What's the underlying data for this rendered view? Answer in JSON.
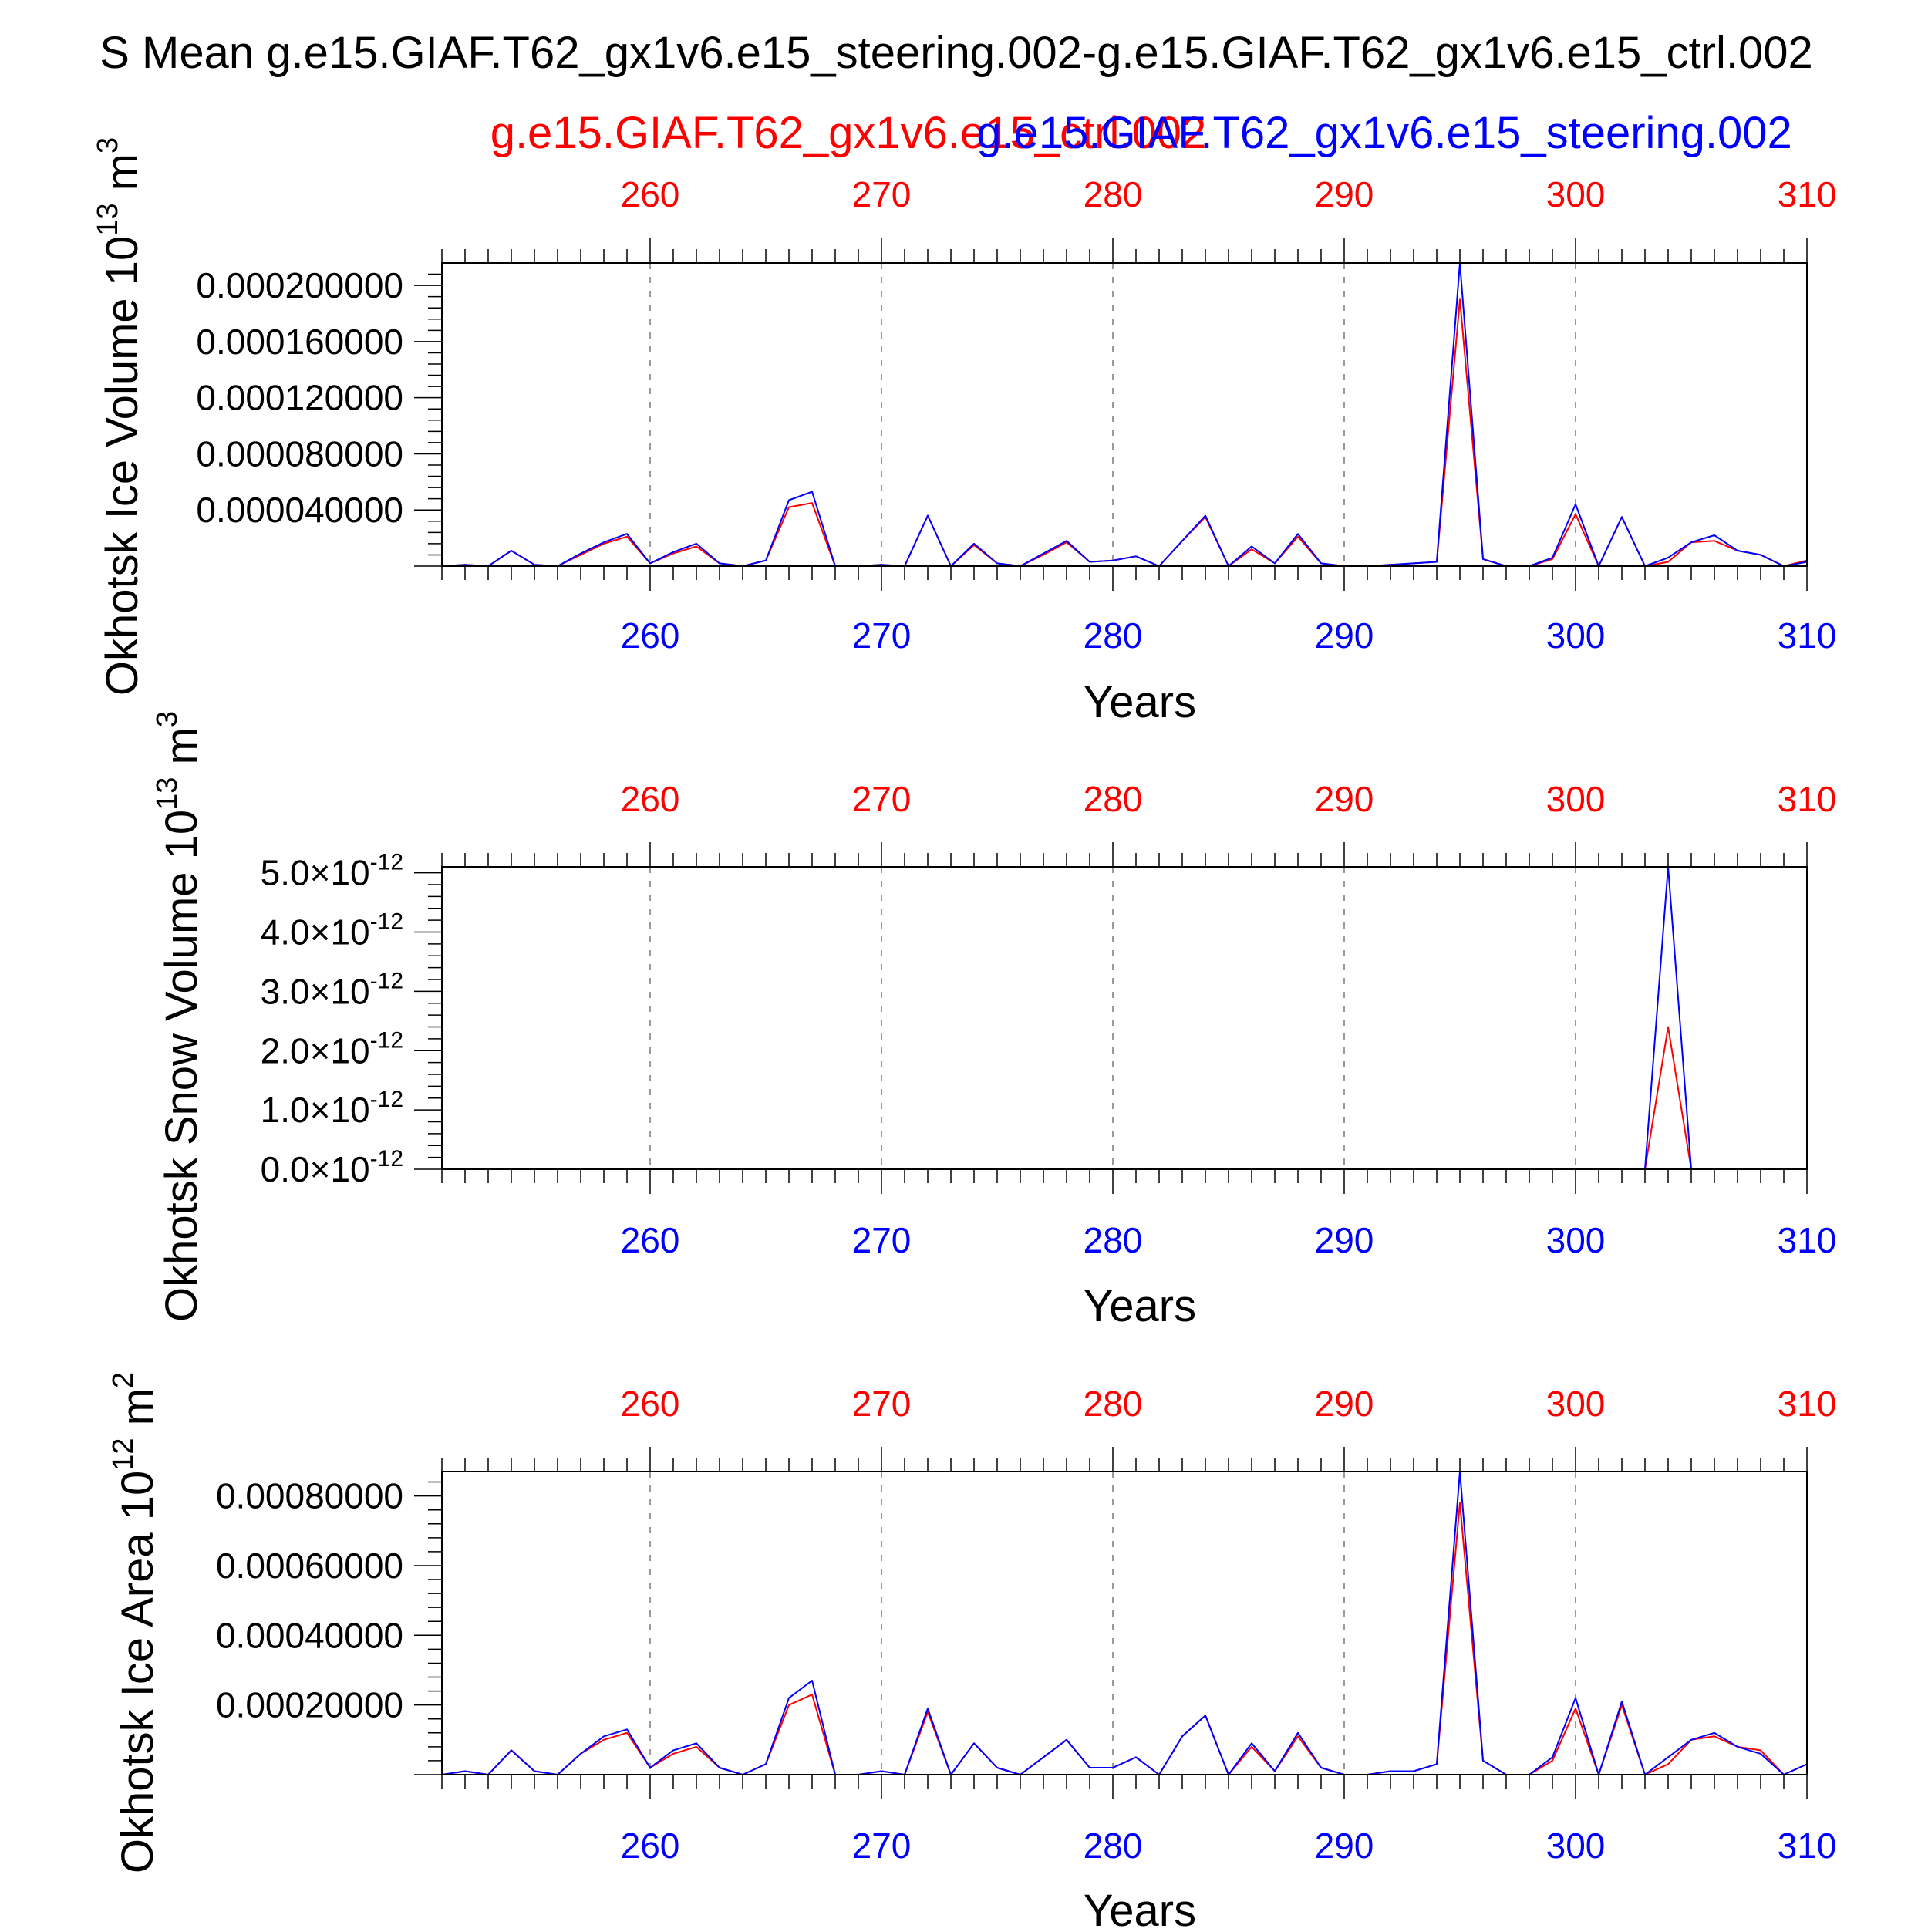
{
  "page": {
    "title": "S Mean g.e15.GIAF.T62_gx1v6.e15_steering.002-g.e15.GIAF.T62_gx1v6.e15_ctrl.002",
    "legend_ctrl": "g.e15.GIAF.T62_gx1v6.e15_ctrl.002",
    "legend_steering": "g.e15.GIAF.T62_gx1v6.e15_steering.002",
    "colors": {
      "ctrl": "#ff0000",
      "steering": "#0000ff",
      "axis": "#000000",
      "grid": "#9a9a9a"
    }
  },
  "chart_data": [
    {
      "type": "line",
      "title": "Okhotsk Ice Volume",
      "ylabel": "Okhotsk Ice Volume 10^13 m^3",
      "ylabel_main": "Okhotsk Ice Volume 10",
      "ylabel_exp": "13",
      "ylabel_unit": " m",
      "ylabel_unit_exp": "3",
      "xlabel": "Years",
      "xlim": [
        251,
        310
      ],
      "ylim": [
        0,
        0.000216
      ],
      "yticks": [
        4e-05,
        8e-05,
        0.00012,
        0.00016,
        0.0002
      ],
      "ytick_labels": [
        "0.000040000",
        "0.000080000",
        "0.000120000",
        "0.000160000",
        "0.000200000"
      ],
      "xticks": [
        260,
        270,
        280,
        290,
        300,
        310
      ],
      "xtick_labels": [
        "260",
        "270",
        "280",
        "290",
        "300",
        "310"
      ],
      "x": [
        251,
        252,
        253,
        254,
        255,
        256,
        257,
        258,
        259,
        260,
        261,
        262,
        263,
        264,
        265,
        266,
        267,
        268,
        269,
        270,
        271,
        272,
        273,
        274,
        275,
        276,
        277,
        278,
        279,
        280,
        281,
        282,
        283,
        284,
        285,
        286,
        287,
        288,
        289,
        290,
        291,
        292,
        293,
        294,
        295,
        296,
        297,
        298,
        299,
        300,
        301,
        302,
        303,
        304,
        305,
        306,
        307,
        308,
        309,
        310
      ],
      "series": [
        {
          "name": "g.e15.GIAF.T62_gx1v6.e15_ctrl.002",
          "color": "red",
          "values": [
            0.0,
            1e-06,
            0.0,
            1.1e-05,
            1e-06,
            0.0,
            8e-06,
            1.6e-05,
            2.1e-05,
            2e-06,
            9e-06,
            1.4e-05,
            2e-06,
            0.0,
            4e-06,
            4.2e-05,
            4.5e-05,
            0.0,
            0.0,
            1e-06,
            0.0,
            3.6e-05,
            0.0,
            1.5e-05,
            2e-06,
            0.0,
            8e-06,
            1.7e-05,
            3e-06,
            4e-06,
            7e-06,
            0.0,
            1.8e-05,
            3.5e-05,
            0.0,
            1.2e-05,
            2e-06,
            2.1e-05,
            2e-06,
            0.0,
            0.0,
            1e-06,
            2e-06,
            3e-06,
            0.00019,
            5e-06,
            0.0,
            0.0,
            5e-06,
            3.7e-05,
            0.0,
            3.5e-05,
            0.0,
            3e-06,
            1.7e-05,
            1.8e-05,
            1.1e-05,
            8e-06,
            0.0,
            4e-06
          ]
        },
        {
          "name": "g.e15.GIAF.T62_gx1v6.e15_steering.002",
          "color": "blue",
          "values": [
            0.0,
            1e-06,
            0.0,
            1.1e-05,
            1e-06,
            0.0,
            9e-06,
            1.7e-05,
            2.3e-05,
            2e-06,
            1e-05,
            1.6e-05,
            2e-06,
            0.0,
            4e-06,
            4.7e-05,
            5.3e-05,
            0.0,
            0.0,
            1e-06,
            0.0,
            3.6e-05,
            0.0,
            1.6e-05,
            2e-06,
            0.0,
            9e-06,
            1.8e-05,
            3e-06,
            4e-06,
            7e-06,
            0.0,
            1.8e-05,
            3.6e-05,
            0.0,
            1.4e-05,
            2e-06,
            2.3e-05,
            2e-06,
            0.0,
            0.0,
            1e-06,
            2e-06,
            3e-06,
            0.000216,
            5e-06,
            0.0,
            0.0,
            6e-06,
            4.4e-05,
            0.0,
            3.5e-05,
            0.0,
            6e-06,
            1.7e-05,
            2.2e-05,
            1.1e-05,
            8e-06,
            0.0,
            3e-06
          ]
        }
      ]
    },
    {
      "type": "line",
      "title": "Okhotsk Snow Volume",
      "ylabel": "Okhotsk Snow Volume 10^13 m^3",
      "ylabel_main": "Okhotsk Snow Volume 10",
      "ylabel_exp": "13",
      "ylabel_unit": " m",
      "ylabel_unit_exp": "3",
      "xlabel": "Years",
      "xlim": [
        251,
        310
      ],
      "ylim": [
        0,
        5.1e-12
      ],
      "yticks": [
        0,
        1e-12,
        2e-12,
        3e-12,
        4e-12,
        5e-12
      ],
      "ytick_labels": [
        "0.0×10",
        "1.0×10",
        "2.0×10",
        "3.0×10",
        "4.0×10",
        "5.0×10"
      ],
      "ytick_exp": "-12",
      "xticks": [
        260,
        270,
        280,
        290,
        300,
        310
      ],
      "xtick_labels": [
        "260",
        "270",
        "280",
        "290",
        "300",
        "310"
      ],
      "x": [
        251,
        252,
        253,
        254,
        255,
        256,
        257,
        258,
        259,
        260,
        261,
        262,
        263,
        264,
        265,
        266,
        267,
        268,
        269,
        270,
        271,
        272,
        273,
        274,
        275,
        276,
        277,
        278,
        279,
        280,
        281,
        282,
        283,
        284,
        285,
        286,
        287,
        288,
        289,
        290,
        291,
        292,
        293,
        294,
        295,
        296,
        297,
        298,
        299,
        300,
        301,
        302,
        303,
        304,
        305,
        306,
        307,
        308,
        309,
        310
      ],
      "series": [
        {
          "name": "g.e15.GIAF.T62_gx1v6.e15_ctrl.002",
          "color": "red",
          "values": [
            0,
            0,
            0,
            0,
            0,
            0,
            0,
            0,
            0,
            0,
            0,
            0,
            0,
            0,
            0,
            0,
            0,
            0,
            0,
            0,
            0,
            0,
            0,
            0,
            0,
            0,
            0,
            0,
            0,
            0,
            0,
            0,
            0,
            0,
            0,
            0,
            0,
            0,
            0,
            0,
            0,
            0,
            0,
            0,
            0,
            0,
            0,
            0,
            0,
            0,
            0,
            0,
            0,
            2.4e-12,
            0,
            0,
            0,
            0,
            0,
            0
          ]
        },
        {
          "name": "g.e15.GIAF.T62_gx1v6.e15_steering.002",
          "color": "blue",
          "values": [
            0,
            0,
            0,
            0,
            0,
            0,
            0,
            0,
            0,
            0,
            0,
            0,
            0,
            0,
            0,
            0,
            0,
            0,
            0,
            0,
            0,
            0,
            0,
            0,
            0,
            0,
            0,
            0,
            0,
            0,
            0,
            0,
            0,
            0,
            0,
            0,
            0,
            0,
            0,
            0,
            0,
            0,
            0,
            0,
            0,
            0,
            0,
            0,
            0,
            0,
            0,
            0,
            0,
            5.1e-12,
            0,
            0,
            0,
            0,
            0,
            0
          ]
        }
      ]
    },
    {
      "type": "line",
      "title": "Okhotsk Ice Area",
      "ylabel": "Okhotsk Ice Area 10^12 m^2",
      "ylabel_main": "Okhotsk Ice Area 10",
      "ylabel_exp": "12",
      "ylabel_unit": " m",
      "ylabel_unit_exp": "2",
      "xlabel": "Years",
      "xlim": [
        251,
        310
      ],
      "ylim": [
        0,
        0.00087
      ],
      "yticks": [
        0.0002,
        0.0004,
        0.0006,
        0.0008
      ],
      "ytick_labels": [
        "0.00020000",
        "0.00040000",
        "0.00060000",
        "0.00080000"
      ],
      "xticks": [
        260,
        270,
        280,
        290,
        300,
        310
      ],
      "xtick_labels": [
        "260",
        "270",
        "280",
        "290",
        "300",
        "310"
      ],
      "x": [
        251,
        252,
        253,
        254,
        255,
        256,
        257,
        258,
        259,
        260,
        261,
        262,
        263,
        264,
        265,
        266,
        267,
        268,
        269,
        270,
        271,
        272,
        273,
        274,
        275,
        276,
        277,
        278,
        279,
        280,
        281,
        282,
        283,
        284,
        285,
        286,
        287,
        288,
        289,
        290,
        291,
        292,
        293,
        294,
        295,
        296,
        297,
        298,
        299,
        300,
        301,
        302,
        303,
        304,
        305,
        306,
        307,
        308,
        309,
        310
      ],
      "series": [
        {
          "name": "g.e15.GIAF.T62_gx1v6.e15_ctrl.002",
          "color": "red",
          "values": [
            0.0,
            1e-05,
            0.0,
            7e-05,
            1e-05,
            0.0,
            6e-05,
            0.0001,
            0.00012,
            2e-05,
            6e-05,
            8e-05,
            2e-05,
            0.0,
            3e-05,
            0.0002,
            0.00023,
            0.0,
            0.0,
            1e-05,
            0.0,
            0.00018,
            0.0,
            9e-05,
            2e-05,
            0.0,
            5e-05,
            0.0001,
            2e-05,
            2e-05,
            5e-05,
            0.0,
            0.00011,
            0.00017,
            0.0,
            8e-05,
            1e-05,
            0.00011,
            2e-05,
            0.0,
            0.0,
            1e-05,
            1e-05,
            3e-05,
            0.00078,
            4e-05,
            0.0,
            0.0,
            4e-05,
            0.00019,
            0.0,
            0.0002,
            0.0,
            3e-05,
            0.0001,
            0.00011,
            8e-05,
            7e-05,
            0.0,
            3e-05
          ]
        },
        {
          "name": "g.e15.GIAF.T62_gx1v6.e15_steering.002",
          "color": "blue",
          "values": [
            0.0,
            1e-05,
            0.0,
            7e-05,
            1e-05,
            0.0,
            6e-05,
            0.00011,
            0.00013,
            2e-05,
            7e-05,
            9e-05,
            2e-05,
            0.0,
            3e-05,
            0.00022,
            0.00027,
            0.0,
            0.0,
            1e-05,
            0.0,
            0.00019,
            0.0,
            9e-05,
            2e-05,
            0.0,
            5e-05,
            0.0001,
            2e-05,
            2e-05,
            5e-05,
            0.0,
            0.00011,
            0.00017,
            0.0,
            9e-05,
            1e-05,
            0.00012,
            2e-05,
            0.0,
            0.0,
            1e-05,
            1e-05,
            3e-05,
            0.00087,
            4e-05,
            0.0,
            0.0,
            5e-05,
            0.00022,
            0.0,
            0.00021,
            0.0,
            5e-05,
            0.0001,
            0.00012,
            8e-05,
            6e-05,
            0.0,
            3e-05
          ]
        }
      ]
    }
  ]
}
